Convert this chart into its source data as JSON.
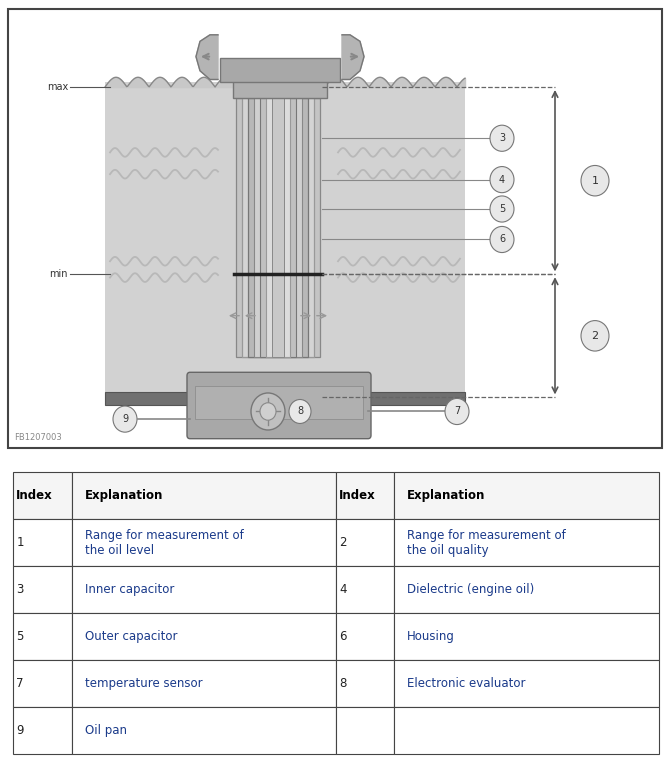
{
  "fig_width": 6.72,
  "fig_height": 7.62,
  "dpi": 100,
  "bg_color": "#ffffff",
  "table_rows": [
    [
      "Index",
      "Explanation",
      "Index",
      "Explanation"
    ],
    [
      "1",
      "Range for measurement of\nthe oil level",
      "2",
      "Range for measurement of\nthe oil quality"
    ],
    [
      "3",
      "Inner capacitor",
      "4",
      "Dielectric (engine oil)"
    ],
    [
      "5",
      "Outer capacitor",
      "6",
      "Housing"
    ],
    [
      "7",
      "temperature sensor",
      "8",
      "Electronic evaluator"
    ],
    [
      "9",
      "Oil pan",
      "",
      ""
    ]
  ],
  "figure_label": "FB1207003",
  "max_label": "max",
  "min_label": "min",
  "oil_bg_color": "#d2d2d2",
  "oil_bg_color2": "#c0c0c0",
  "wavy_color": "#b0b0b0",
  "tube_outer_color": "#b8b8b8",
  "tube_mid_color": "#d0d0d0",
  "tube_inner_color": "#c4c4c4",
  "base_color": "#707070",
  "cap_color": "#b0b0b0",
  "casing_color": "#a8a8a8",
  "circle_face": "#e8e8e8",
  "circle_edge": "#777777",
  "divider_color": "#222222",
  "dashed_color": "#666666",
  "arrow_color": "#555555",
  "table_blue": "#1a3a8a",
  "table_header_color": "#000000",
  "border_color": "#444444"
}
